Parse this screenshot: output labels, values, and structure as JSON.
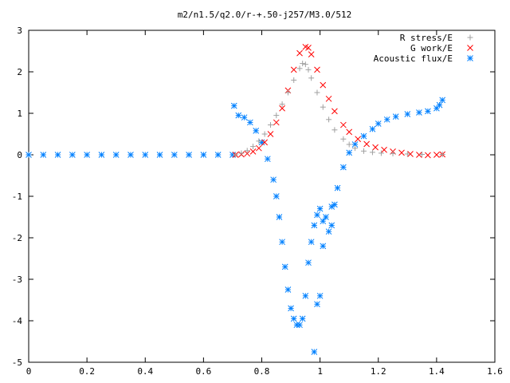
{
  "chart_data": {
    "type": "scatter",
    "title": "m2/n1.5/q2.0/r-+.50-j257/M3.0/512",
    "xlabel": "",
    "ylabel": "",
    "xlim": [
      0,
      1.6
    ],
    "ylim": [
      -5,
      3
    ],
    "xticks": [
      "0",
      "0.2",
      "0.4",
      "0.6",
      "0.8",
      "1",
      "1.2",
      "1.4",
      "1.6"
    ],
    "yticks": [
      "3",
      "2",
      "1",
      "0",
      "-1",
      "-2",
      "-3",
      "-4",
      "-5"
    ],
    "grid": false,
    "legend_position": "top-right",
    "series": [
      {
        "name": "R stress/E",
        "marker": "+",
        "color": "#a0a0a0",
        "x": [
          0.71,
          0.73,
          0.75,
          0.77,
          0.79,
          0.81,
          0.83,
          0.85,
          0.87,
          0.89,
          0.91,
          0.93,
          0.94,
          0.95,
          0.96,
          0.97,
          0.99,
          1.01,
          1.03,
          1.05,
          1.08,
          1.1,
          1.12,
          1.15,
          1.18,
          1.21,
          1.25,
          1.3,
          1.35,
          1.42
        ],
        "y": [
          0.0,
          0.04,
          0.1,
          0.2,
          0.33,
          0.5,
          0.72,
          0.95,
          1.22,
          1.5,
          1.8,
          2.08,
          2.2,
          2.18,
          2.05,
          1.85,
          1.5,
          1.15,
          0.85,
          0.6,
          0.38,
          0.25,
          0.16,
          0.09,
          0.06,
          0.04,
          0.03,
          0.02,
          0.01,
          0.01
        ]
      },
      {
        "name": "G work/E",
        "marker": "x",
        "color": "#ff0000",
        "x": [
          0.71,
          0.73,
          0.75,
          0.77,
          0.79,
          0.81,
          0.83,
          0.85,
          0.87,
          0.89,
          0.91,
          0.93,
          0.95,
          0.96,
          0.97,
          0.99,
          1.01,
          1.03,
          1.05,
          1.08,
          1.1,
          1.13,
          1.16,
          1.19,
          1.22,
          1.25,
          1.28,
          1.31,
          1.34,
          1.37,
          1.4,
          1.42
        ],
        "y": [
          0.0,
          0.01,
          0.03,
          0.08,
          0.16,
          0.3,
          0.5,
          0.78,
          1.12,
          1.55,
          2.05,
          2.45,
          2.6,
          2.58,
          2.42,
          2.05,
          1.68,
          1.35,
          1.05,
          0.72,
          0.55,
          0.38,
          0.26,
          0.18,
          0.12,
          0.08,
          0.05,
          0.02,
          0.0,
          -0.01,
          0.0,
          0.01
        ]
      },
      {
        "name": "Acoustic flux/E",
        "marker": "*",
        "color": "#0080ff",
        "x": [
          0.0,
          0.05,
          0.1,
          0.15,
          0.2,
          0.25,
          0.3,
          0.35,
          0.4,
          0.45,
          0.5,
          0.55,
          0.6,
          0.65,
          0.7,
          0.705,
          0.72,
          0.74,
          0.76,
          0.78,
          0.8,
          0.82,
          0.84,
          0.85,
          0.86,
          0.87,
          0.88,
          0.89,
          0.9,
          0.91,
          0.92,
          0.93,
          0.94,
          0.95,
          0.96,
          0.97,
          0.98,
          0.99,
          1.0,
          0.98,
          0.99,
          1.0,
          1.01,
          1.01,
          1.02,
          1.03,
          1.04,
          1.04,
          1.05,
          1.06,
          1.08,
          1.1,
          1.12,
          1.15,
          1.18,
          1.2,
          1.23,
          1.26,
          1.3,
          1.34,
          1.37,
          1.4,
          1.41,
          1.42
        ],
        "y": [
          0,
          0,
          0,
          0,
          0,
          0,
          0,
          0,
          0,
          0,
          0,
          0,
          0,
          0,
          0,
          1.18,
          0.95,
          0.9,
          0.78,
          0.58,
          0.3,
          -0.1,
          -0.6,
          -1.0,
          -1.5,
          -2.1,
          -2.7,
          -3.25,
          -3.7,
          -3.95,
          -4.1,
          -4.1,
          -3.95,
          -3.4,
          -2.6,
          -2.1,
          -1.7,
          -1.45,
          -1.3,
          -4.75,
          -3.6,
          -3.4,
          -2.2,
          -1.6,
          -1.5,
          -1.85,
          -1.25,
          -1.7,
          -1.2,
          -0.8,
          -0.3,
          0.05,
          0.25,
          0.45,
          0.62,
          0.75,
          0.85,
          0.92,
          0.98,
          1.02,
          1.05,
          1.12,
          1.2,
          1.32
        ]
      }
    ]
  }
}
